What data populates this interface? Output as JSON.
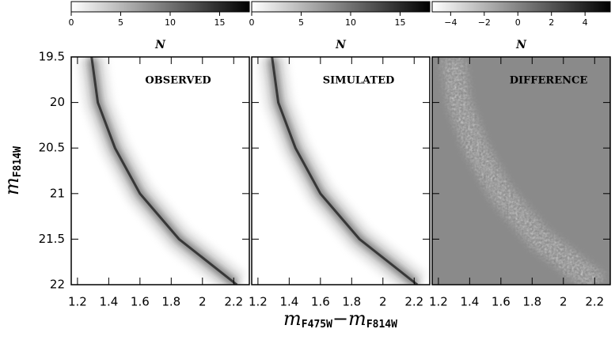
{
  "chart_data": {
    "type": "hess-panels",
    "xlim": [
      1.16,
      2.3
    ],
    "xticks": [
      1.2,
      1.4,
      1.6,
      1.8,
      2,
      2.2
    ],
    "ylim": [
      19.5,
      22
    ],
    "invert_y": true,
    "yticks": [
      19.5,
      20,
      20.5,
      21,
      21.5,
      22
    ],
    "ylabel": "m",
    "ylabel_sub": "F814W",
    "xlabel": [
      "m",
      "F475W",
      "−m",
      "F814W"
    ],
    "panels": [
      {
        "label": "OBSERVED",
        "colorbar_title": "N",
        "clim": [
          0,
          18
        ],
        "cticks": [
          0,
          5,
          10,
          15
        ],
        "background": "#ffffff",
        "colormap": [
          "#ffffff",
          "#000000"
        ]
      },
      {
        "label": "SIMULATED",
        "colorbar_title": "N",
        "clim": [
          0,
          18
        ],
        "cticks": [
          0,
          5,
          10,
          15
        ],
        "background": "#ffffff",
        "colormap": [
          "#ffffff",
          "#000000"
        ]
      },
      {
        "label": "DIFFERENCE",
        "colorbar_title": "N",
        "clim": [
          -5.1,
          5.5
        ],
        "cticks": [
          {
            "value": -4,
            "label": "−4"
          },
          {
            "value": -2,
            "label": "−2"
          },
          0,
          2,
          4
        ],
        "background": "#8a8a8a",
        "colormap": [
          "#ffffff",
          "#000000"
        ]
      }
    ]
  }
}
